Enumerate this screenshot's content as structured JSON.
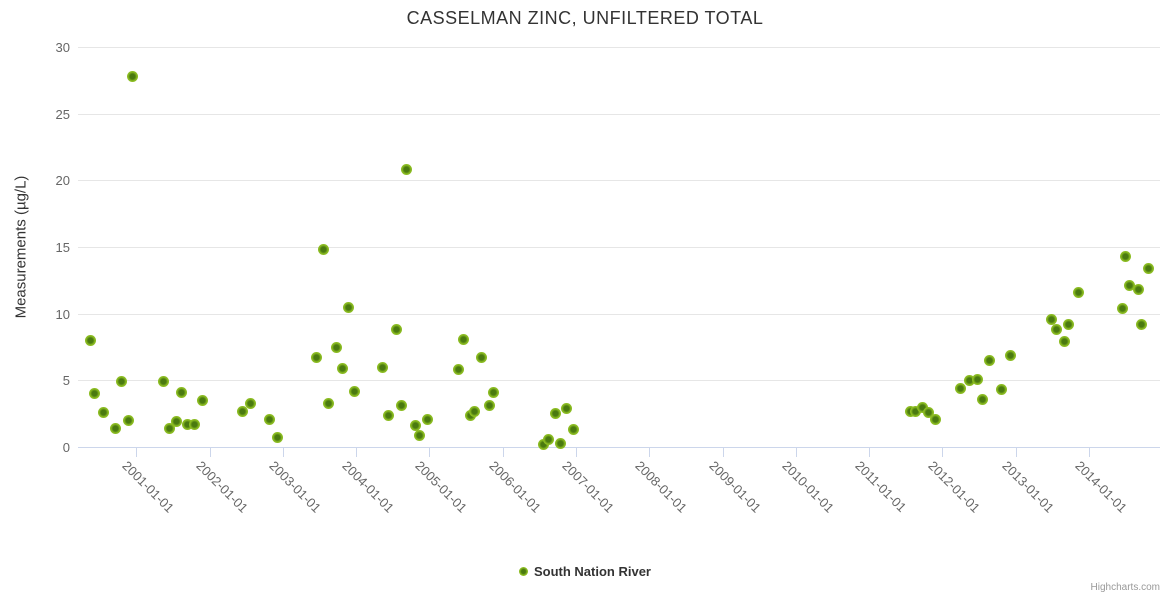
{
  "credits_label": "Highcharts.com",
  "colors": {
    "marker_outer": "#8bbc21",
    "marker_inner": "#4a7a10",
    "grid": "#e6e6e6",
    "axis_line": "#ccd6eb",
    "title_color": "#333333",
    "tick_label_color": "#666666"
  },
  "chart_data": {
    "type": "scatter",
    "title": "CASSELMAN ZINC, UNFILTERED TOTAL",
    "xlabel": "",
    "ylabel": "Measurements (µg/L)",
    "ylim": [
      0,
      30
    ],
    "yticks": [
      0,
      5,
      10,
      15,
      20,
      25,
      30
    ],
    "xlim": [
      "2000-03-15",
      "2014-12-20"
    ],
    "xticks": [
      "2001-01-01",
      "2002-01-01",
      "2003-01-01",
      "2004-01-01",
      "2005-01-01",
      "2006-01-01",
      "2007-01-01",
      "2008-01-01",
      "2009-01-01",
      "2010-01-01",
      "2011-01-01",
      "2012-01-01",
      "2013-01-01",
      "2014-01-01"
    ],
    "grid": "horizontal-only",
    "legend_position": "bottom-center",
    "series": [
      {
        "name": "South Nation River",
        "points": [
          {
            "date": "2000-05-15",
            "value": 8.0
          },
          {
            "date": "2000-06-05",
            "value": 4.0
          },
          {
            "date": "2000-07-21",
            "value": 2.6
          },
          {
            "date": "2000-09-17",
            "value": 1.4
          },
          {
            "date": "2000-10-18",
            "value": 4.9
          },
          {
            "date": "2000-11-24",
            "value": 2.0
          },
          {
            "date": "2000-12-11",
            "value": 27.8
          },
          {
            "date": "2001-05-17",
            "value": 4.9
          },
          {
            "date": "2001-06-14",
            "value": 1.4
          },
          {
            "date": "2001-07-18",
            "value": 1.9
          },
          {
            "date": "2001-08-12",
            "value": 4.1
          },
          {
            "date": "2001-09-11",
            "value": 1.7
          },
          {
            "date": "2001-10-18",
            "value": 1.7
          },
          {
            "date": "2001-11-25",
            "value": 3.5
          },
          {
            "date": "2002-06-15",
            "value": 2.7
          },
          {
            "date": "2002-07-21",
            "value": 3.3
          },
          {
            "date": "2002-10-26",
            "value": 2.1
          },
          {
            "date": "2002-12-07",
            "value": 0.7
          },
          {
            "date": "2003-06-19",
            "value": 6.7
          },
          {
            "date": "2003-07-23",
            "value": 14.8
          },
          {
            "date": "2003-08-17",
            "value": 3.3
          },
          {
            "date": "2003-09-27",
            "value": 7.5
          },
          {
            "date": "2003-10-22",
            "value": 5.9
          },
          {
            "date": "2003-11-26",
            "value": 10.5
          },
          {
            "date": "2003-12-21",
            "value": 4.2
          },
          {
            "date": "2004-05-12",
            "value": 6.0
          },
          {
            "date": "2004-06-12",
            "value": 2.4
          },
          {
            "date": "2004-07-19",
            "value": 8.8
          },
          {
            "date": "2004-08-16",
            "value": 3.1
          },
          {
            "date": "2004-09-11",
            "value": 20.8
          },
          {
            "date": "2004-10-24",
            "value": 1.6
          },
          {
            "date": "2004-11-11",
            "value": 0.9
          },
          {
            "date": "2004-12-23",
            "value": 2.1
          },
          {
            "date": "2005-05-23",
            "value": 5.8
          },
          {
            "date": "2005-06-21",
            "value": 8.1
          },
          {
            "date": "2005-07-21",
            "value": 2.4
          },
          {
            "date": "2005-08-15",
            "value": 2.7
          },
          {
            "date": "2005-09-18",
            "value": 6.7
          },
          {
            "date": "2005-10-26",
            "value": 3.1
          },
          {
            "date": "2005-11-17",
            "value": 4.1
          },
          {
            "date": "2006-07-21",
            "value": 0.2
          },
          {
            "date": "2006-08-18",
            "value": 0.6
          },
          {
            "date": "2006-09-19",
            "value": 2.5
          },
          {
            "date": "2006-10-16",
            "value": 0.3
          },
          {
            "date": "2006-11-14",
            "value": 2.9
          },
          {
            "date": "2006-12-18",
            "value": 1.3
          },
          {
            "date": "2011-07-25",
            "value": 2.7
          },
          {
            "date": "2011-08-19",
            "value": 2.7
          },
          {
            "date": "2011-09-24",
            "value": 3.0
          },
          {
            "date": "2011-10-24",
            "value": 2.6
          },
          {
            "date": "2011-11-26",
            "value": 2.1
          },
          {
            "date": "2012-04-02",
            "value": 4.4
          },
          {
            "date": "2012-05-15",
            "value": 5.0
          },
          {
            "date": "2012-06-26",
            "value": 5.1
          },
          {
            "date": "2012-07-18",
            "value": 3.6
          },
          {
            "date": "2012-08-21",
            "value": 6.5
          },
          {
            "date": "2012-10-23",
            "value": 4.3
          },
          {
            "date": "2012-12-03",
            "value": 6.9
          },
          {
            "date": "2013-06-27",
            "value": 9.6
          },
          {
            "date": "2013-07-23",
            "value": 8.8
          },
          {
            "date": "2013-09-02",
            "value": 7.9
          },
          {
            "date": "2013-09-19",
            "value": 9.2
          },
          {
            "date": "2013-11-10",
            "value": 11.6
          },
          {
            "date": "2014-06-18",
            "value": 10.4
          },
          {
            "date": "2014-07-02",
            "value": 14.3
          },
          {
            "date": "2014-07-20",
            "value": 12.1
          },
          {
            "date": "2014-09-03",
            "value": 11.8
          },
          {
            "date": "2014-09-18",
            "value": 9.2
          },
          {
            "date": "2014-10-23",
            "value": 13.4
          }
        ]
      }
    ]
  }
}
